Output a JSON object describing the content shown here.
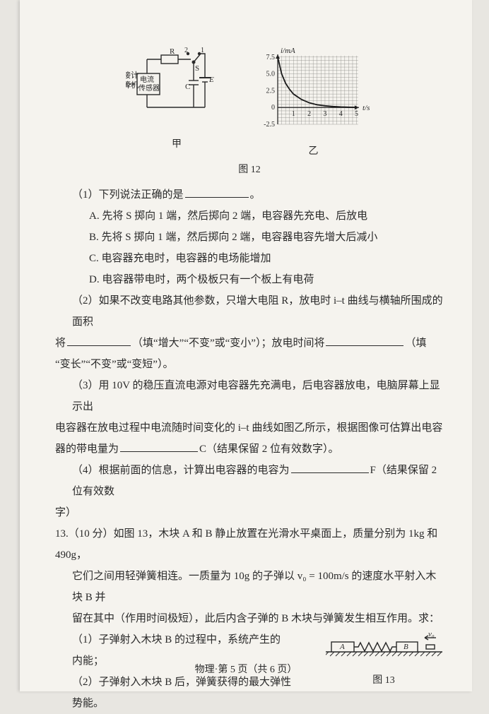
{
  "figure12": {
    "circuit": {
      "label_computer": "接计\n算机",
      "label_sensor": "电流\n传感器",
      "label_R": "R",
      "label_S": "S",
      "label_C": "C",
      "label_E": "E",
      "label_1": "1",
      "label_2": "2",
      "caption": "甲"
    },
    "graph": {
      "type": "line",
      "y_label": "i/mA",
      "x_label": "t/s",
      "y_ticks": [
        -2.5,
        0,
        2.5,
        5.0,
        7.5
      ],
      "x_ticks": [
        0,
        1,
        2,
        3,
        4,
        5
      ],
      "xlim": [
        0,
        5.2
      ],
      "ylim": [
        -2.5,
        8.0
      ],
      "curve_points": [
        [
          0,
          7.5
        ],
        [
          0.25,
          5.0
        ],
        [
          0.5,
          3.6
        ],
        [
          0.75,
          2.7
        ],
        [
          1,
          2.0
        ],
        [
          1.5,
          1.2
        ],
        [
          2,
          0.7
        ],
        [
          2.5,
          0.4
        ],
        [
          3,
          0.25
        ],
        [
          3.5,
          0.15
        ],
        [
          4,
          0.08
        ],
        [
          4.5,
          0.04
        ],
        [
          5,
          0.02
        ]
      ],
      "axis_color": "#2a2a2a",
      "grid_color": "#8a8a85",
      "curve_color": "#1a1a1a",
      "curve_width": 1.8,
      "background_color": "#f5f3ee",
      "caption": "乙"
    },
    "main_caption": "图 12"
  },
  "q12": {
    "part1": {
      "stem": "（1）下列说法正确的是",
      "suffix": "。",
      "A": "A. 先将 S 掷向 1 端，然后掷向 2 端，电容器先充电、后放电",
      "B": "B. 先将 S 掷向 1 端，然后掷向 2 端，电容器电容先增大后减小",
      "C": "C. 电容器充电时，电容器的电场能增加",
      "D": "D. 电容器带电时，两个极板只有一个板上有电荷"
    },
    "part2": {
      "line1_a": "（2）如果不改变电路其他参数，只增大电阻 R，放电时 i–t 曲线与横轴所围成的面积",
      "line2_a": "将",
      "line2_b": "（填“增大”“不变”或“变小”）；放电时间将",
      "line2_c": "（填",
      "line3": "“变长”“不变”或“变短”）。"
    },
    "part3": {
      "line1": "（3）用 10V 的稳压直流电源对电容器先充满电，后电容器放电，电脑屏幕上显示出",
      "line2": "电容器在放电过程中电流随时间变化的 i–t 曲线如图乙所示，根据图像可估算出电容",
      "line3_a": "器的带电量为",
      "line3_b": "C（结果保留 2 位有效数字）。"
    },
    "part4": {
      "line1_a": "（4）根据前面的信息，计算出电容器的电容为",
      "line1_b": "F（结果保留 2 位有效数",
      "line2": "字）"
    }
  },
  "q13": {
    "head_a": "13.（10 分）如图 13，木块 A 和 B 静止放置在光滑水平桌面上，质量分别为 1kg 和 490g，",
    "line2": "它们之间用轻弹簧相连。一质量为 10g 的子弹以 v₀ = 100m/s 的速度水平射入木块 B 并",
    "line3": "留在其中（作用时间极短），此后内含子弹的 B 木块与弹簧发生相互作用。求：",
    "p1a": "（1）子弹射入木块 B 的过程中，系统产生的",
    "p1b": "内能；",
    "p2a": "（2）子弹射入木块 B 后，弹簧获得的最大弹性",
    "p2b": "势能。",
    "figure": {
      "label_A": "A",
      "label_B": "B",
      "label_v0": "v₀",
      "caption": "图 13",
      "block_fill": "#f5f3ee",
      "stroke": "#2a2a2a",
      "hatch_color": "#2a2a2a"
    }
  },
  "footer": "物理·第 5 页（共 6 页）"
}
